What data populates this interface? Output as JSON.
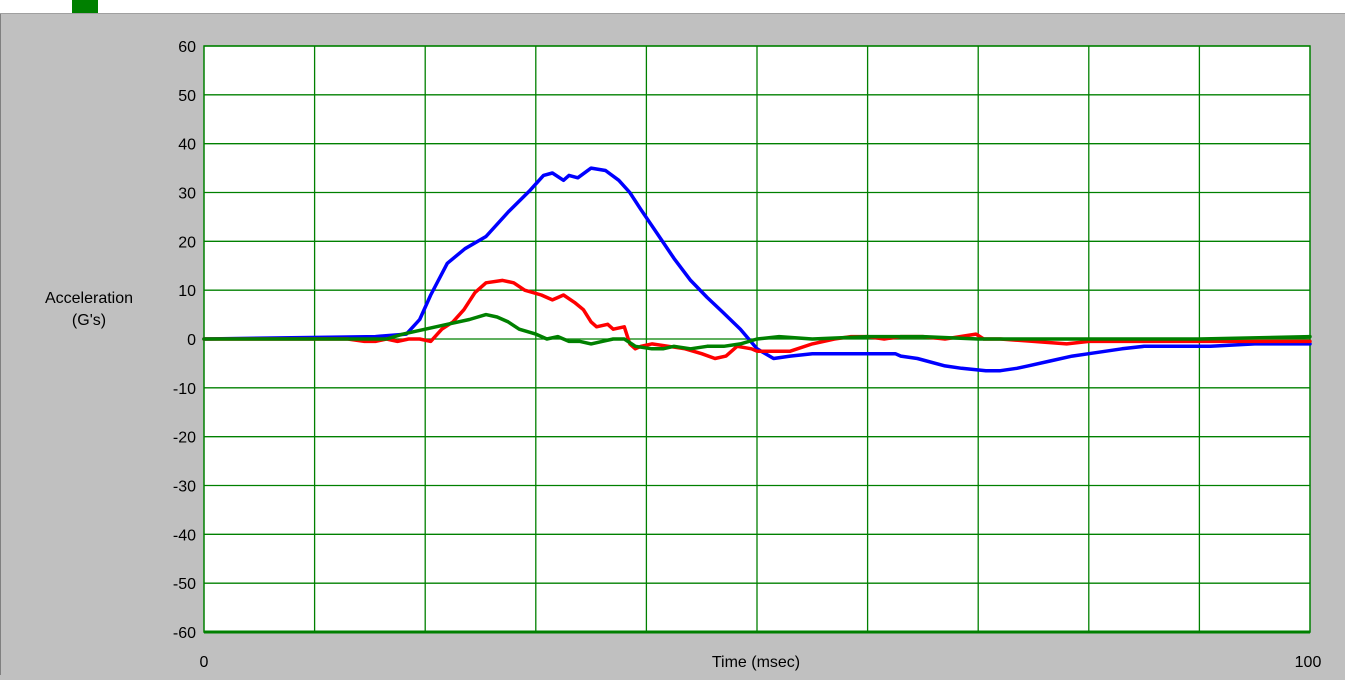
{
  "window": {
    "indicator_color": "#008000"
  },
  "chart_data": {
    "type": "line",
    "title": "",
    "xlabel": "Time (msec)",
    "ylabel": [
      "Acceleration",
      "(G's)"
    ],
    "xlim": [
      0,
      100
    ],
    "ylim": [
      -60,
      60
    ],
    "x_tick_labels": [
      {
        "value": 0,
        "label": "0"
      },
      {
        "value": 100,
        "label": "100"
      }
    ],
    "x_grid": [
      10,
      20,
      30,
      40,
      50,
      60,
      70,
      80,
      90
    ],
    "y_ticks": [
      60,
      50,
      40,
      30,
      20,
      10,
      0,
      -10,
      -20,
      -30,
      -40,
      -50,
      -60
    ],
    "grid": true,
    "colors": {
      "background": "#c0c0c0",
      "plot_area": "#ffffff",
      "grid": "#008000",
      "axis": "#008000"
    },
    "series": [
      {
        "color": "#0000ff",
        "x": [
          0,
          15.5,
          18.3,
          19.5,
          20.5,
          22,
          23.6,
          25.5,
          27.5,
          29.5,
          30.7,
          31.5,
          32.5,
          33,
          33.8,
          35,
          36.3,
          37.5,
          38.5,
          39.5,
          41,
          42.5,
          44,
          45.5,
          46.9,
          48.5,
          50,
          51.5,
          53,
          55,
          60,
          62.5,
          63,
          64.5,
          67,
          68.5,
          70.7,
          72,
          73.5,
          74.5,
          76.5,
          78.5,
          80,
          83,
          85,
          89,
          91,
          95,
          100
        ],
        "y": [
          0,
          0.5,
          1,
          4,
          9,
          15.5,
          18.5,
          21,
          26,
          30.5,
          33.5,
          34,
          32.5,
          33.5,
          33,
          35,
          34.5,
          32.5,
          30,
          26.5,
          21.5,
          16.5,
          12,
          8.5,
          5.5,
          2,
          -2,
          -4,
          -3.5,
          -3,
          -3,
          -3,
          -3.5,
          -4,
          -5.5,
          -6,
          -6.5,
          -6.5,
          -6,
          -5.5,
          -4.5,
          -3.5,
          -3,
          -2,
          -1.5,
          -1.5,
          -1.5,
          -1,
          -1
        ]
      },
      {
        "color": "#ff0000",
        "x": [
          0,
          13,
          14.5,
          15.5,
          16.5,
          17.5,
          18.5,
          19.5,
          20.5,
          21.5,
          22.5,
          23.5,
          24.5,
          25.5,
          27,
          28,
          29,
          30.5,
          31.5,
          32,
          32.5,
          33.5,
          34.3,
          35,
          35.5,
          36.5,
          37,
          38,
          38.5,
          39,
          39.5,
          40.5,
          42,
          43.5,
          45,
          46.2,
          47.2,
          48.2,
          49.5,
          50,
          51.5,
          53,
          55,
          57,
          58.5,
          60,
          61.5,
          63,
          65,
          67,
          69.8,
          70.5,
          72,
          75,
          78,
          80,
          90,
          100
        ],
        "y": [
          0,
          0,
          -0.5,
          -0.5,
          0,
          -0.5,
          0,
          0,
          -0.5,
          2,
          3.5,
          6,
          9.5,
          11.5,
          12,
          11.5,
          10,
          9,
          8,
          8.5,
          9,
          7.5,
          6,
          3.5,
          2.5,
          3,
          2,
          2.5,
          -1,
          -2,
          -1.5,
          -1,
          -1.5,
          -2,
          -3,
          -4,
          -3.5,
          -1.5,
          -2,
          -2.5,
          -2.5,
          -2.5,
          -1,
          0,
          0.5,
          0.5,
          0,
          0.5,
          0.5,
          0,
          1,
          0,
          0,
          -0.5,
          -1,
          -0.5,
          -0.5,
          -0.5
        ]
      },
      {
        "color": "#008000",
        "x": [
          0,
          16.5,
          18,
          20,
          22,
          24,
          25.5,
          26.5,
          27.5,
          28.5,
          30,
          31,
          32,
          33,
          34,
          35,
          36,
          37,
          38,
          39,
          40.5,
          41.5,
          42.5,
          44,
          45.5,
          47,
          48.5,
          50,
          52,
          55,
          60,
          65,
          70,
          80,
          90,
          100
        ],
        "y": [
          0,
          0,
          1,
          2,
          3,
          4,
          5,
          4.5,
          3.5,
          2,
          1,
          0,
          0.5,
          -0.5,
          -0.5,
          -1,
          -0.5,
          0,
          0,
          -1.5,
          -2,
          -2,
          -1.5,
          -2,
          -1.5,
          -1.5,
          -1,
          0,
          0.5,
          0,
          0.5,
          0.5,
          0,
          0,
          0,
          0.5
        ]
      }
    ]
  }
}
